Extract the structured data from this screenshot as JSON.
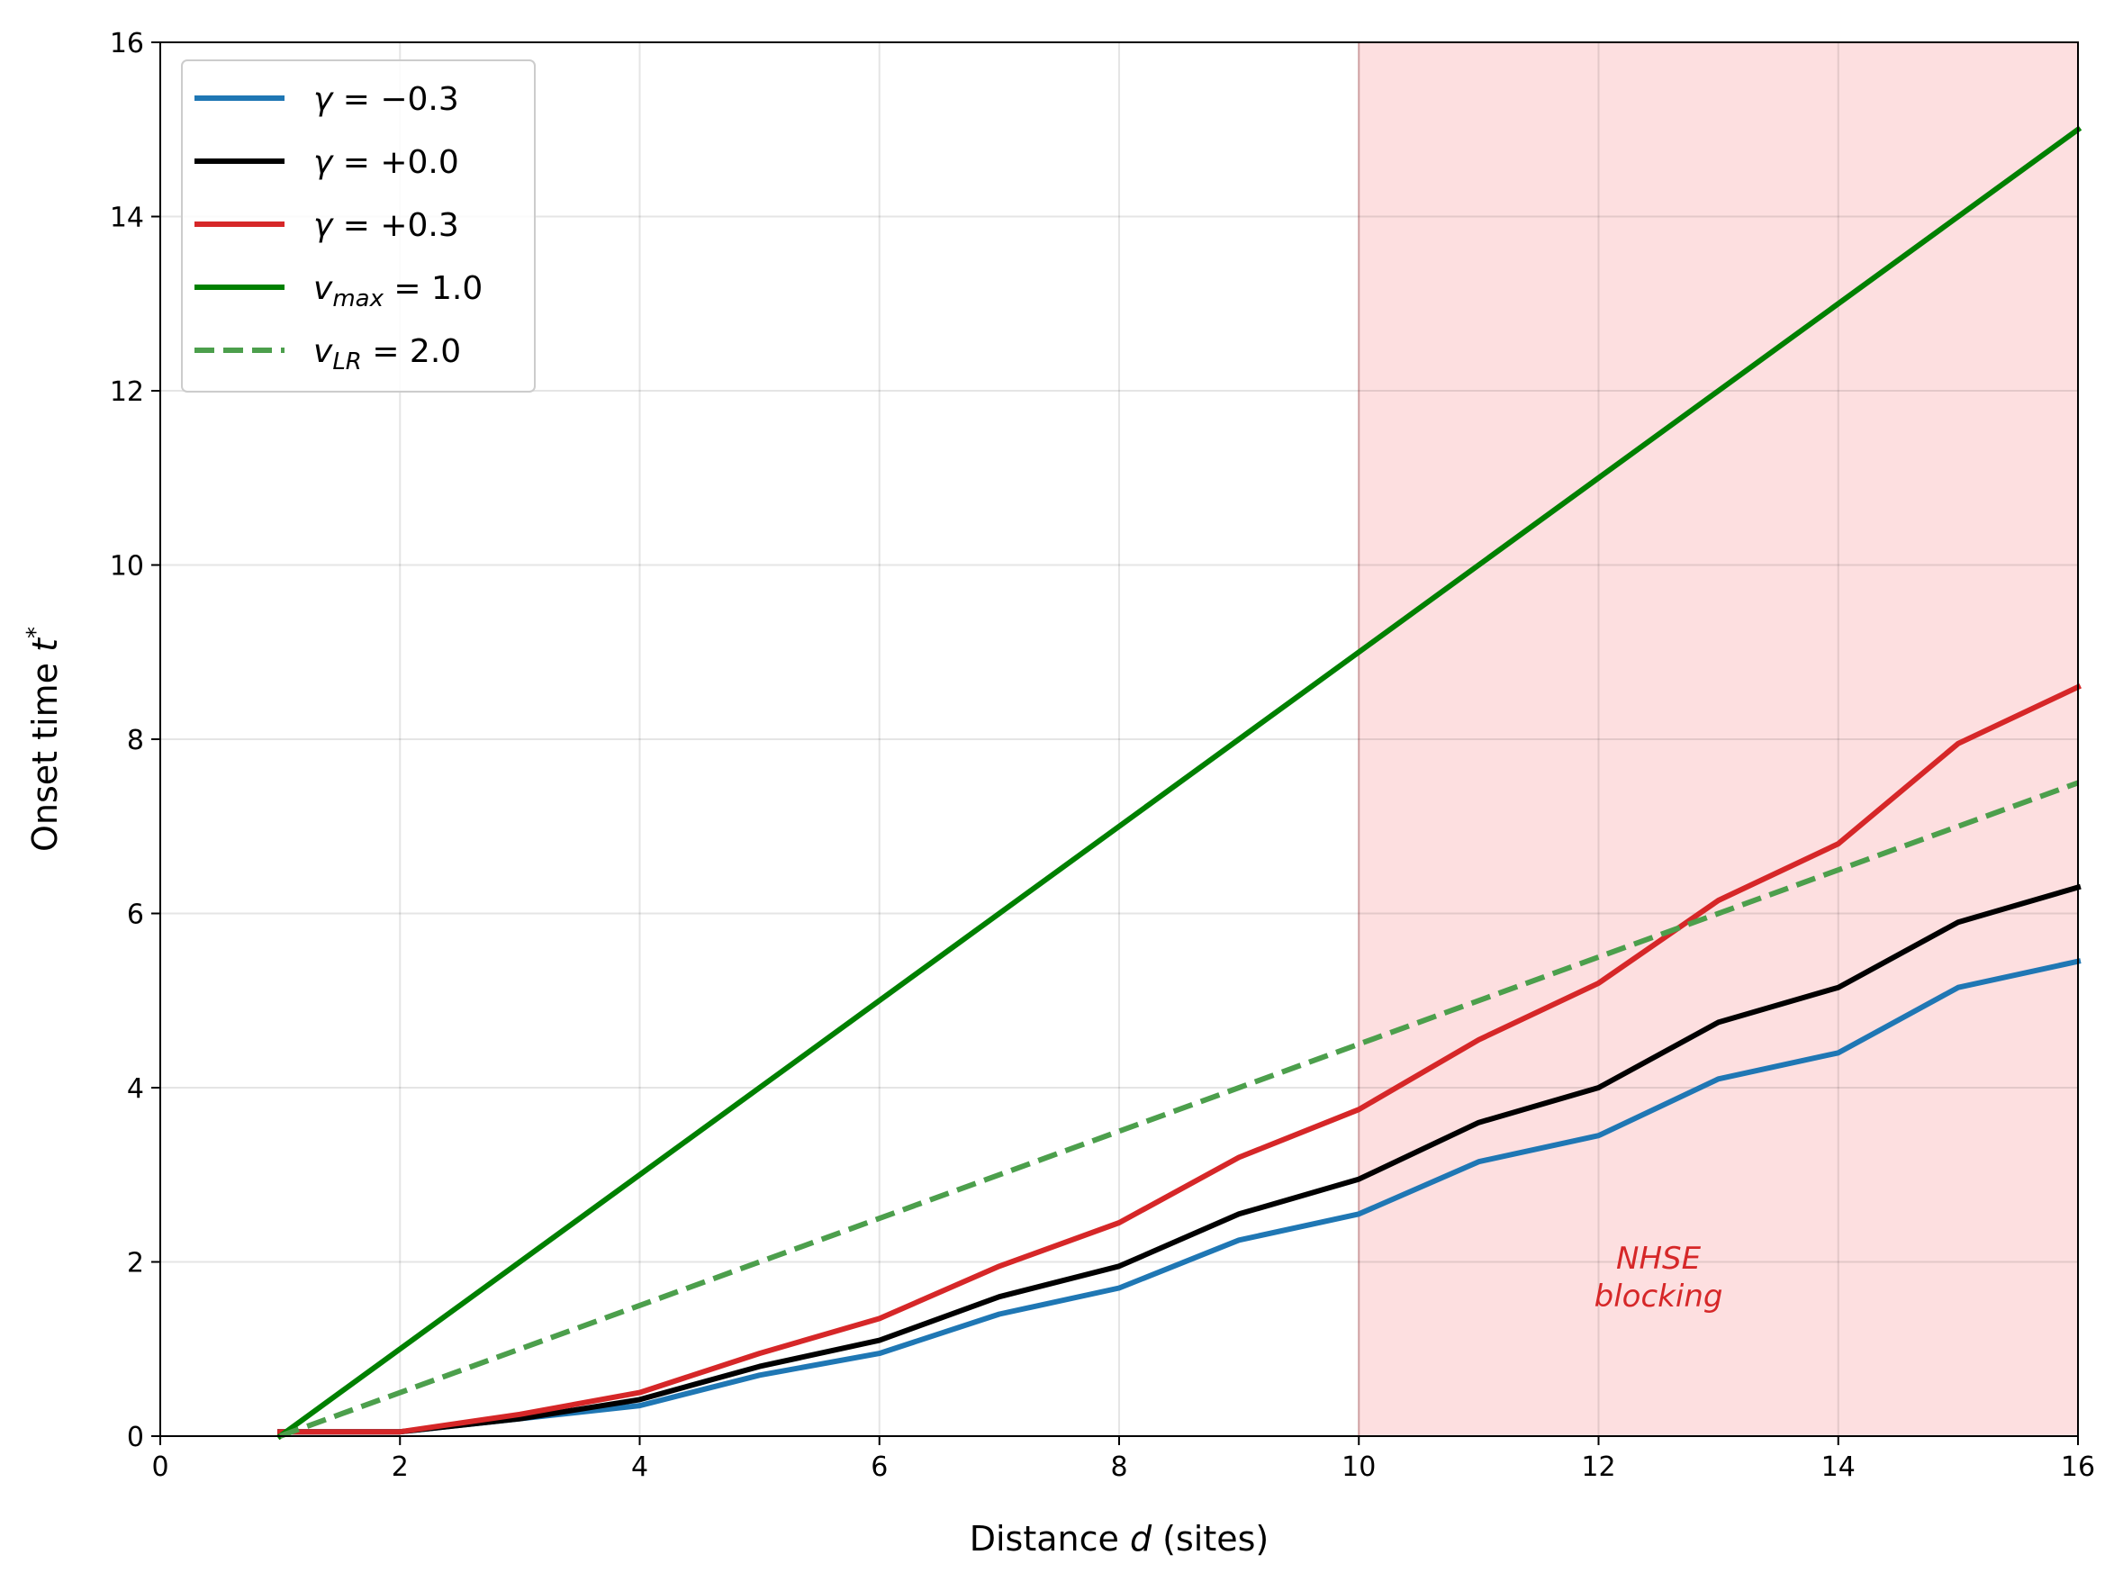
{
  "chart_data": {
    "type": "line",
    "title": "",
    "xlabel": "Distance d (sites)",
    "xlabel_parts": [
      "Distance ",
      "d",
      " (sites)"
    ],
    "ylabel": "Onset time t*",
    "ylabel_parts": [
      "Onset time ",
      "t",
      "*"
    ],
    "xlim": [
      0,
      16
    ],
    "ylim": [
      0,
      16
    ],
    "xticks": [
      0,
      2,
      4,
      6,
      8,
      10,
      12,
      14,
      16
    ],
    "yticks": [
      0,
      2,
      4,
      6,
      8,
      10,
      12,
      14,
      16
    ],
    "grid": true,
    "legend_position": "top-left",
    "shaded_region": {
      "x_start": 10,
      "x_end": 16,
      "color": "#fddfe0",
      "edge_color": "#e8b4b6"
    },
    "annotation": {
      "lines": [
        "NHSE",
        "blocking"
      ],
      "x": 12.5,
      "y": 1.9,
      "color": "#d62728"
    },
    "series": [
      {
        "name": "γ = −0.3",
        "legend_parts": [
          "γ",
          " = −0.3"
        ],
        "color": "#1f77b4",
        "dash": "solid",
        "x": [
          1,
          2,
          3,
          4,
          5,
          6,
          7,
          8,
          9,
          10,
          11,
          12,
          13,
          14,
          15,
          16
        ],
        "values": [
          0.05,
          0.05,
          0.2,
          0.35,
          0.7,
          0.95,
          1.4,
          1.7,
          2.25,
          2.55,
          3.15,
          3.45,
          4.1,
          4.4,
          5.15,
          5.45
        ]
      },
      {
        "name": "γ = +0.0",
        "legend_parts": [
          "γ",
          " = +0.0"
        ],
        "color": "#000000",
        "dash": "solid",
        "x": [
          1,
          2,
          3,
          4,
          5,
          6,
          7,
          8,
          9,
          10,
          11,
          12,
          13,
          14,
          15,
          16
        ],
        "values": [
          0.05,
          0.05,
          0.2,
          0.42,
          0.8,
          1.1,
          1.6,
          1.95,
          2.55,
          2.95,
          3.6,
          4.0,
          4.75,
          5.15,
          5.9,
          6.3
        ]
      },
      {
        "name": "γ = +0.3",
        "legend_parts": [
          "γ",
          " = +0.3"
        ],
        "color": "#d62728",
        "dash": "solid",
        "x": [
          1,
          2,
          3,
          4,
          5,
          6,
          7,
          8,
          9,
          10,
          11,
          12,
          13,
          14,
          15,
          16
        ],
        "values": [
          0.05,
          0.05,
          0.25,
          0.5,
          0.95,
          1.35,
          1.95,
          2.45,
          3.2,
          3.75,
          4.55,
          5.2,
          6.15,
          6.8,
          7.95,
          8.6
        ]
      },
      {
        "name": "v_max = 1.0",
        "legend_parts": [
          "v",
          "max",
          " = 1.0"
        ],
        "color": "#008000",
        "dash": "solid",
        "x": [
          1,
          16
        ],
        "values": [
          0,
          15
        ]
      },
      {
        "name": "v_LR = 2.0",
        "legend_parts": [
          "v",
          "LR",
          " = 2.0"
        ],
        "color": "#4c9f4c",
        "dash": "dashed",
        "x": [
          1,
          16
        ],
        "values": [
          0,
          7.5
        ]
      }
    ]
  }
}
